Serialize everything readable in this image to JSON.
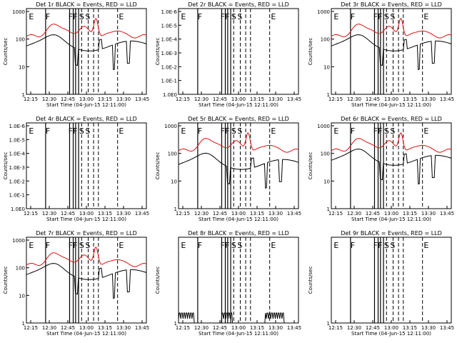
{
  "figure": {
    "start_time_label": "Start Time (04-Jun-15 12:11:00)",
    "ylabel": "Counts/sec",
    "colors": {
      "events": "#000000",
      "lld": "#e01010"
    }
  },
  "chart_data": [
    {
      "type": "line",
      "title": "Det 1r BLACK = Events, RED = LLD",
      "ylabel": "Counts/sec",
      "xlabel": "Start Time (04-Jun-15 12:11:00)",
      "x_ticks": [
        "12:15",
        "12:30",
        "12:45",
        "13:00",
        "13:15",
        "13:30",
        "13:45"
      ],
      "y_ticks": [
        "1000",
        "100",
        "10",
        "1"
      ],
      "ylim": [
        1,
        1000
      ],
      "ylog": true,
      "markers": [
        "E",
        "F",
        "FF",
        "S",
        "S",
        "E"
      ],
      "series": [
        {
          "name": "Events",
          "color": "#000000"
        },
        {
          "name": "LLD",
          "color": "#e01010"
        }
      ]
    },
    {
      "type": "line",
      "title": "Det 2r BLACK = Events, RED = LLD",
      "ylabel": "Counts/sec",
      "xlabel": "Start Time (04-Jun-15 12:11:00)",
      "x_ticks": [
        "12:15",
        "12:30",
        "12:45",
        "13:00",
        "13:15",
        "13:30",
        "13:45"
      ],
      "y_ticks": [
        "1.0E-6",
        "1.0E-5",
        "1.0E-4",
        "1.0E-3",
        "1.0E-2",
        "1.0E-1",
        "1.0E0"
      ],
      "ylim": [
        1,
        1e-06
      ],
      "ylog": true,
      "markers": [
        "E",
        "F",
        "FF",
        "S",
        "S",
        "E"
      ],
      "series": []
    },
    {
      "type": "line",
      "title": "Det 3r BLACK = Events, RED = LLD",
      "ylabel": "Counts/sec",
      "xlabel": "Start Time (04-Jun-15 12:11:00)",
      "x_ticks": [
        "12:15",
        "12:30",
        "12:45",
        "13:00",
        "13:15",
        "13:30",
        "13:45"
      ],
      "y_ticks": [
        "1000",
        "100",
        "10",
        "1"
      ],
      "ylim": [
        1,
        1000
      ],
      "ylog": true,
      "markers": [
        "E",
        "F",
        "FF",
        "S",
        "S",
        "E"
      ],
      "series": [
        {
          "name": "Events",
          "color": "#000000"
        },
        {
          "name": "LLD",
          "color": "#e01010"
        }
      ]
    },
    {
      "type": "line",
      "title": "Det 4r BLACK = Events, RED = LLD",
      "ylabel": "Counts/sec",
      "xlabel": "Start Time (04-Jun-15 12:11:00)",
      "x_ticks": [
        "12:15",
        "12:30",
        "12:45",
        "13:00",
        "13:15",
        "13:30",
        "13:45"
      ],
      "y_ticks": [
        "1.0E-6",
        "1.0E-5",
        "1.0E-4",
        "1.0E-3",
        "1.0E-2",
        "1.0E-1",
        "1.0E0"
      ],
      "ylim": [
        1,
        1e-06
      ],
      "ylog": true,
      "markers": [
        "E",
        "F",
        "FF",
        "S",
        "S",
        "E"
      ],
      "series": []
    },
    {
      "type": "line",
      "title": "Det 5r BLACK = Events, RED = LLD",
      "ylabel": "Counts/sec",
      "xlabel": "Start Time (04-Jun-15 12:11:00)",
      "x_ticks": [
        "12:15",
        "12:30",
        "12:45",
        "13:00",
        "13:15",
        "13:30",
        "13:45"
      ],
      "y_ticks": [
        "1000",
        "100",
        "10",
        "1"
      ],
      "ylim": [
        1,
        1000
      ],
      "ylog": true,
      "markers": [
        "E",
        "F",
        "FF",
        "S",
        "S",
        "E"
      ],
      "series": [
        {
          "name": "Events",
          "color": "#000000"
        },
        {
          "name": "LLD",
          "color": "#e01010"
        }
      ]
    },
    {
      "type": "line",
      "title": "Det 6r BLACK = Events, RED = LLD",
      "ylabel": "Counts/sec",
      "xlabel": "Start Time (04-Jun-15 12:11:00)",
      "x_ticks": [
        "12:15",
        "12:30",
        "12:45",
        "13:00",
        "13:15",
        "13:30",
        "13:45"
      ],
      "y_ticks": [
        "1000",
        "100",
        "10",
        "1"
      ],
      "ylim": [
        1,
        1000
      ],
      "ylog": true,
      "markers": [
        "E",
        "F",
        "FF",
        "S",
        "S",
        "E"
      ],
      "series": [
        {
          "name": "Events",
          "color": "#000000"
        },
        {
          "name": "LLD",
          "color": "#e01010"
        }
      ]
    },
    {
      "type": "line",
      "title": "Det 7r BLACK = Events, RED = LLD",
      "ylabel": "Counts/sec",
      "xlabel": "Start Time (04-Jun-15 12:11:00)",
      "x_ticks": [
        "12:15",
        "12:30",
        "12:45",
        "13:00",
        "13:15",
        "13:30",
        "13:45"
      ],
      "y_ticks": [
        "1000",
        "100",
        "10",
        "1"
      ],
      "ylim": [
        1,
        1000
      ],
      "ylog": true,
      "markers": [
        "E",
        "F",
        "FF",
        "S",
        "S",
        "E"
      ],
      "series": [
        {
          "name": "Events",
          "color": "#000000"
        },
        {
          "name": "LLD",
          "color": "#e01010"
        }
      ]
    },
    {
      "type": "line",
      "title": "Det 8r BLACK = Events, RED = LLD",
      "ylabel": "Counts/sec",
      "xlabel": "Start Time (04-Jun-15 12:11:00)",
      "x_ticks": [
        "12:15",
        "12:30",
        "12:45",
        "13:00",
        "13:15",
        "13:30",
        "13:45"
      ],
      "y_ticks": [
        "1"
      ],
      "ylim": [
        1,
        10
      ],
      "ylog": true,
      "markers": [
        "E",
        "F",
        "FF",
        "S",
        "S",
        "E"
      ],
      "series": [
        {
          "name": "Events",
          "color": "#000000"
        }
      ]
    },
    {
      "type": "line",
      "title": "Det 9r BLACK = Events, RED = LLD",
      "ylabel": "Counts/sec",
      "xlabel": "Start Time (04-Jun-15 12:11:00)",
      "x_ticks": [
        "12:15",
        "12:30",
        "12:45",
        "13:00",
        "13:15",
        "13:30",
        "13:45"
      ],
      "y_ticks": [
        "1"
      ],
      "ylim": [
        1,
        10
      ],
      "ylog": true,
      "markers": [
        "E",
        "F",
        "FF",
        "S",
        "S",
        "E"
      ],
      "series": []
    }
  ]
}
